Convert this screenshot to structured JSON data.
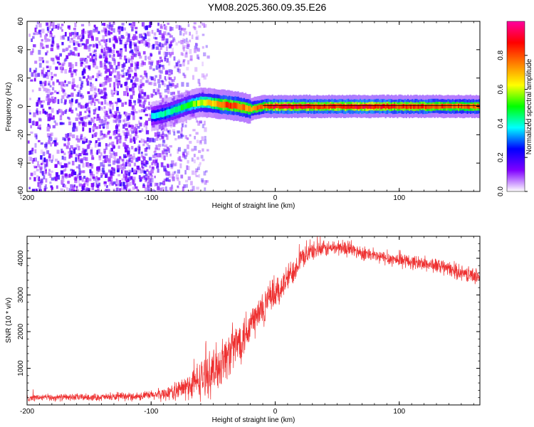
{
  "title": "YM08.2025.360.09.35.E26",
  "chart_data": [
    {
      "id": "spectrogram",
      "type": "heatmap",
      "title": "",
      "xlabel": "Height of straight line (km)",
      "ylabel": "Frequency (Hz)",
      "xlim": [
        -200,
        165
      ],
      "ylim": [
        -60,
        60
      ],
      "xticks": [
        -200,
        -100,
        0,
        100
      ],
      "yticks": [
        60,
        40,
        20,
        0,
        -20,
        -40,
        -60
      ],
      "colorbar": {
        "label": "Normalized spectral amplitude",
        "range": [
          0.0,
          1.0
        ],
        "ticks": [
          0.0,
          0.2,
          0.4,
          0.6,
          0.8
        ],
        "tick_labels": [
          "0.0",
          "0.2",
          "0.4",
          "0.6",
          "0.8"
        ],
        "colors": [
          "#ffffff",
          "#8000ff",
          "#0000ff",
          "#00ffff",
          "#00ff00",
          "#ffff00",
          "#ff8000",
          "#ff0000",
          "#ff00a0"
        ]
      },
      "noise_region_x": [
        -200,
        -80
      ],
      "noise_amplitude_range": [
        0.05,
        0.2
      ],
      "signal_track": {
        "x": [
          -100,
          -90,
          -80,
          -70,
          -60,
          -50,
          -40,
          -30,
          -20,
          -10,
          0,
          10,
          20,
          40,
          60,
          80,
          100,
          120,
          140,
          165
        ],
        "freq_hz": [
          -7,
          -5,
          -2,
          1,
          3,
          2,
          1,
          0,
          -2,
          0,
          0,
          0,
          0,
          0,
          0,
          0,
          0,
          0,
          0,
          0
        ],
        "amplitude": [
          0.4,
          0.45,
          0.5,
          0.55,
          0.65,
          0.75,
          0.9,
          0.85,
          0.8,
          0.85,
          0.95,
          0.95,
          0.95,
          0.9,
          0.95,
          0.95,
          0.9,
          0.9,
          0.85,
          0.85
        ]
      }
    },
    {
      "id": "snr",
      "type": "line",
      "title": "",
      "xlabel": "Height of straight line (km)",
      "ylabel": "SNR (10 * v/v)",
      "xlim": [
        -200,
        165
      ],
      "ylim": [
        0,
        4600
      ],
      "xticks": [
        -200,
        -100,
        0,
        100
      ],
      "yticks": [
        1000,
        2000,
        3000,
        4000
      ],
      "line_color": "#ee3030",
      "series": [
        {
          "name": "SNR",
          "x": [
            -200,
            -180,
            -160,
            -140,
            -120,
            -100,
            -90,
            -80,
            -70,
            -60,
            -50,
            -45,
            -40,
            -35,
            -30,
            -25,
            -20,
            -15,
            -10,
            -5,
            0,
            5,
            10,
            15,
            20,
            25,
            30,
            40,
            50,
            60,
            70,
            80,
            90,
            100,
            110,
            120,
            130,
            140,
            150,
            165
          ],
          "y": [
            200,
            200,
            210,
            210,
            220,
            260,
            300,
            380,
            500,
            700,
            900,
            1100,
            1300,
            1500,
            1700,
            1950,
            2200,
            2400,
            2600,
            2850,
            3000,
            3200,
            3450,
            3700,
            3950,
            4100,
            4200,
            4250,
            4300,
            4250,
            4150,
            4050,
            4000,
            3950,
            3900,
            3850,
            3800,
            3700,
            3600,
            3500
          ],
          "noise": [
            80,
            80,
            80,
            80,
            90,
            110,
            150,
            200,
            320,
            450,
            500,
            550,
            500,
            550,
            500,
            550,
            500,
            450,
            450,
            400,
            380,
            350,
            320,
            300,
            250,
            220,
            200,
            180,
            180,
            170,
            160,
            160,
            160,
            160,
            160,
            160,
            170,
            170,
            170,
            170
          ]
        }
      ]
    }
  ]
}
